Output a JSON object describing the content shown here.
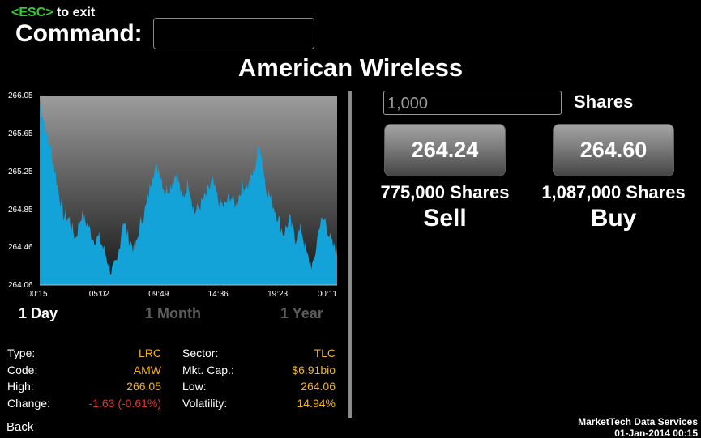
{
  "header": {
    "esc_key": "<ESC>",
    "esc_text": " to exit",
    "command_label": "Command:",
    "command_value": ""
  },
  "title": "American Wireless",
  "chart_data": {
    "type": "area",
    "x_ticks": [
      "00:15",
      "05:02",
      "09:49",
      "14:36",
      "19:23",
      "00:11"
    ],
    "y_ticks": [
      266.05,
      265.65,
      265.25,
      264.85,
      264.46,
      264.06
    ],
    "ylim": [
      264.06,
      266.05
    ],
    "fill_color": "#13a3d8",
    "anchors": [
      [
        0.0,
        266.02
      ],
      [
        0.02,
        265.7
      ],
      [
        0.04,
        265.45
      ],
      [
        0.06,
        265.1
      ],
      [
        0.08,
        264.8
      ],
      [
        0.1,
        264.75
      ],
      [
        0.12,
        264.55
      ],
      [
        0.14,
        264.8
      ],
      [
        0.16,
        264.7
      ],
      [
        0.18,
        264.55
      ],
      [
        0.2,
        264.55
      ],
      [
        0.22,
        264.4
      ],
      [
        0.24,
        264.2
      ],
      [
        0.26,
        264.28
      ],
      [
        0.28,
        264.75
      ],
      [
        0.3,
        264.55
      ],
      [
        0.32,
        264.42
      ],
      [
        0.34,
        264.72
      ],
      [
        0.36,
        264.9
      ],
      [
        0.38,
        265.25
      ],
      [
        0.4,
        265.3
      ],
      [
        0.42,
        265.05
      ],
      [
        0.44,
        265.1
      ],
      [
        0.46,
        265.25
      ],
      [
        0.48,
        264.95
      ],
      [
        0.5,
        265.15
      ],
      [
        0.52,
        264.82
      ],
      [
        0.54,
        264.9
      ],
      [
        0.56,
        265.0
      ],
      [
        0.58,
        265.15
      ],
      [
        0.6,
        264.95
      ],
      [
        0.62,
        264.88
      ],
      [
        0.64,
        265.0
      ],
      [
        0.66,
        264.9
      ],
      [
        0.68,
        265.1
      ],
      [
        0.7,
        265.1
      ],
      [
        0.72,
        265.25
      ],
      [
        0.74,
        265.55
      ],
      [
        0.76,
        265.1
      ],
      [
        0.78,
        264.95
      ],
      [
        0.8,
        264.78
      ],
      [
        0.82,
        264.6
      ],
      [
        0.84,
        264.75
      ],
      [
        0.86,
        264.55
      ],
      [
        0.88,
        264.65
      ],
      [
        0.9,
        264.35
      ],
      [
        0.92,
        264.25
      ],
      [
        0.94,
        264.7
      ],
      [
        0.96,
        264.75
      ],
      [
        0.98,
        264.5
      ],
      [
        1.0,
        264.4
      ]
    ]
  },
  "ranges": {
    "day": "1 Day",
    "month": "1 Month",
    "year": "1 Year"
  },
  "stats_left": [
    {
      "label": "Type:",
      "value": "LRC"
    },
    {
      "label": "Code:",
      "value": "AMW"
    },
    {
      "label": "High:",
      "value": "266.05"
    },
    {
      "label": "Change:",
      "value": "-1.63 (-0.61%)"
    }
  ],
  "stats_right": [
    {
      "label": "Sector:",
      "value": "TLC"
    },
    {
      "label": "Mkt. Cap.:",
      "value": "$6.91bio"
    },
    {
      "label": "Low:",
      "value": "264.06"
    },
    {
      "label": "Volatility:",
      "value": "14.94%"
    }
  ],
  "colors": {
    "value": "#f5b21b",
    "negative": "#e3342b",
    "esc_key": "#2fcf2f"
  },
  "trade": {
    "shares_value": "1,000",
    "shares_label": "Shares",
    "sell_price": "264.24",
    "sell_volume": "775,000 Shares",
    "sell_label": "Sell",
    "buy_price": "264.60",
    "buy_volume": "1,087,000 Shares",
    "buy_label": "Buy"
  },
  "footer": {
    "back": "Back",
    "company": "MarketTech Data Services",
    "datetime": "01-Jan-2014 00:15"
  }
}
